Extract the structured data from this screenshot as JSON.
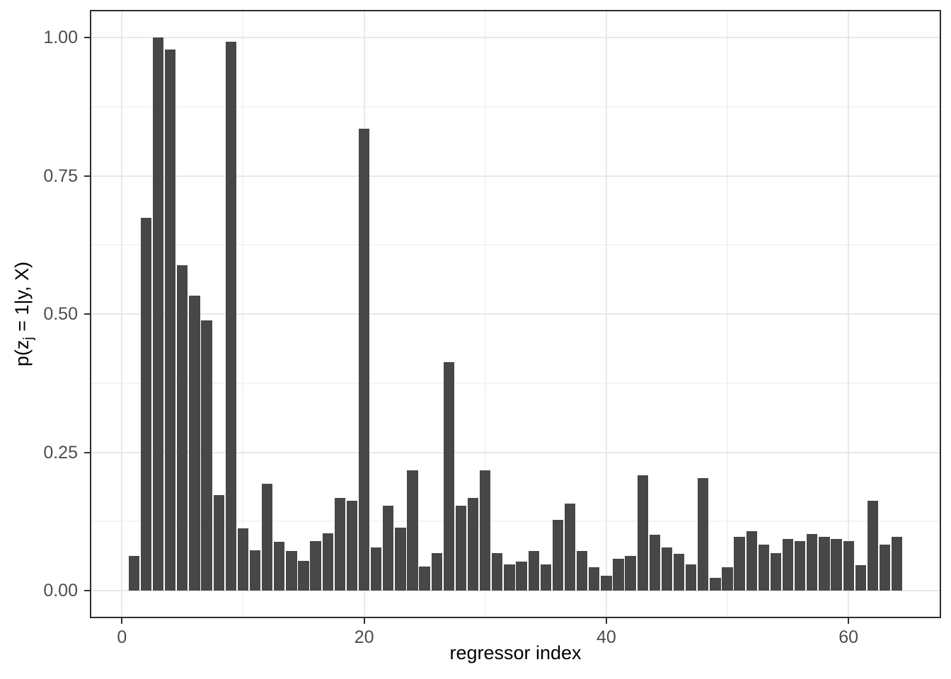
{
  "chart_data": {
    "type": "bar",
    "title": "",
    "xlabel": "regressor index",
    "ylabel": "p(z_j = 1|y, X)",
    "ylabel_parts": {
      "prefix": "p(z",
      "subscript": "j",
      "suffix": " = 1|y, X)"
    },
    "x": [
      1,
      2,
      3,
      4,
      5,
      6,
      7,
      8,
      9,
      10,
      11,
      12,
      13,
      14,
      15,
      16,
      17,
      18,
      19,
      20,
      21,
      22,
      23,
      24,
      25,
      26,
      27,
      28,
      29,
      30,
      31,
      32,
      33,
      34,
      35,
      36,
      37,
      38,
      39,
      40,
      41,
      42,
      43,
      44,
      45,
      46,
      47,
      48,
      49,
      50,
      51,
      52,
      53,
      54,
      55,
      56,
      57,
      58,
      59,
      60,
      61,
      62,
      63,
      64
    ],
    "values": [
      0.062,
      0.674,
      1.0,
      0.979,
      0.588,
      0.533,
      0.488,
      0.173,
      0.993,
      0.113,
      0.073,
      0.193,
      0.088,
      0.072,
      0.054,
      0.089,
      0.103,
      0.168,
      0.163,
      0.835,
      0.078,
      0.153,
      0.114,
      0.218,
      0.043,
      0.068,
      0.413,
      0.153,
      0.167,
      0.217,
      0.068,
      0.047,
      0.052,
      0.072,
      0.047,
      0.128,
      0.157,
      0.072,
      0.042,
      0.027,
      0.057,
      0.062,
      0.208,
      0.101,
      0.078,
      0.067,
      0.047,
      0.203,
      0.023,
      0.042,
      0.097,
      0.107,
      0.083,
      0.068,
      0.093,
      0.089,
      0.102,
      0.097,
      0.093,
      0.089,
      0.046,
      0.162,
      0.083,
      0.097
    ],
    "x_ticks": [
      {
        "value": 0,
        "label": "0"
      },
      {
        "value": 20,
        "label": "20"
      },
      {
        "value": 40,
        "label": "40"
      },
      {
        "value": 60,
        "label": "60"
      }
    ],
    "y_ticks": [
      {
        "value": 0.0,
        "label": "0.00"
      },
      {
        "value": 0.25,
        "label": "0.25"
      },
      {
        "value": 0.5,
        "label": "0.50"
      },
      {
        "value": 0.75,
        "label": "0.75"
      },
      {
        "value": 1.0,
        "label": "1.00"
      }
    ],
    "x_minor": [
      10,
      30,
      50
    ],
    "y_minor": [
      0.125,
      0.375,
      0.625,
      0.875
    ],
    "xlim": [
      -2.645,
      67.645
    ],
    "ylim": [
      -0.05,
      1.05
    ],
    "bar_width_ratio": 0.9,
    "grid": true,
    "legend_position": "none",
    "colors": {
      "bar": "#474747",
      "panel_border": "#2e2e2e",
      "grid_major": "#e8e8e8",
      "grid_minor": "#f3f3f3",
      "tick_mark": "#333333",
      "tick_label": "#4d4d4d",
      "axis_title": "#000000",
      "background": "#ffffff"
    }
  }
}
